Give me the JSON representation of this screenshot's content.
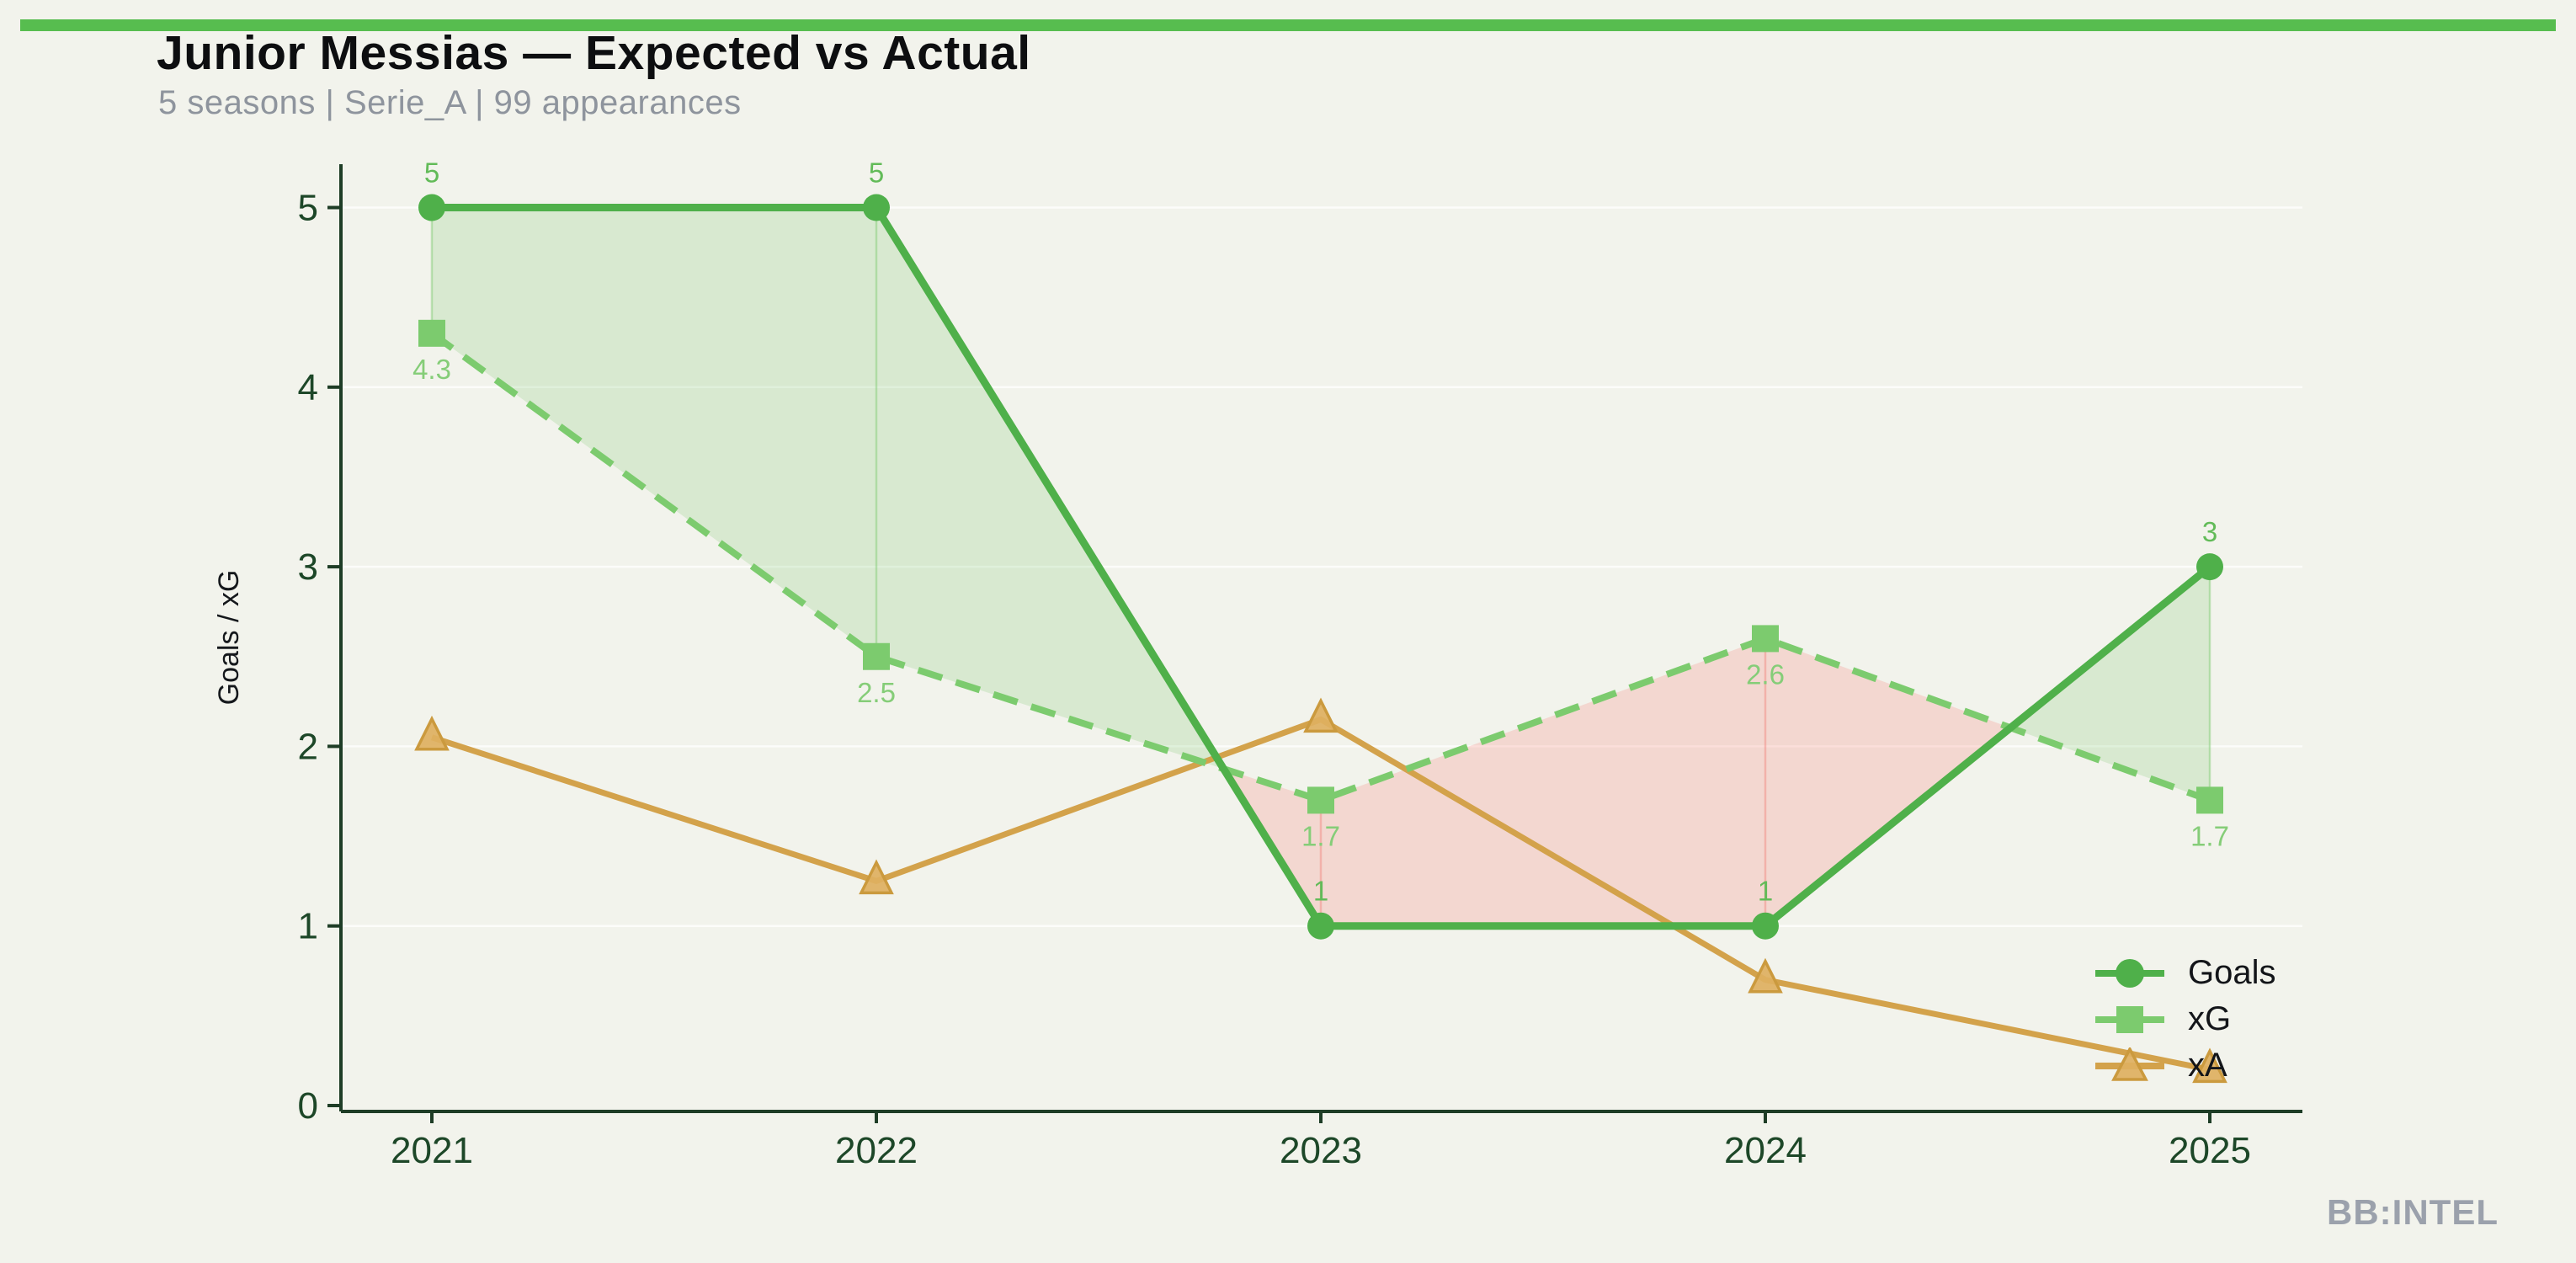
{
  "page": {
    "background_color": "#f2f3ec",
    "accent_bar_color": "#57bd4f"
  },
  "header": {
    "title": "Junior Messias — Expected vs Actual",
    "subtitle": "5 seasons | Serie_A | 99 appearances"
  },
  "watermark": "BB:INTEL",
  "chart_data": {
    "type": "line",
    "x": [
      "2021",
      "2022",
      "2023",
      "2024",
      "2025"
    ],
    "ylabel": "Goals / xG",
    "xlabel": "",
    "ylim": [
      0,
      5.3
    ],
    "yticks": [
      "0",
      "1",
      "2",
      "3",
      "4",
      "5"
    ],
    "grid": "faint horizontal gridlines",
    "legend_position": "lower right",
    "axis_color": "#1e3d26",
    "tick_label_color": "#1d4728",
    "series": [
      {
        "name": "Goals",
        "values": [
          5,
          5,
          1,
          1,
          3
        ],
        "labels": [
          "5",
          "5",
          "1",
          "1",
          "3"
        ],
        "color": "#4fb04a",
        "label_color": "#62bb58",
        "marker": "circle",
        "line_style": "solid"
      },
      {
        "name": "xG",
        "values": [
          4.3,
          2.5,
          1.7,
          2.6,
          1.7
        ],
        "labels": [
          "4.3",
          "2.5",
          "1.7",
          "2.6",
          "1.7"
        ],
        "color": "#7ccb6e",
        "label_color": "#85cd78",
        "marker": "square",
        "line_style": "dashed"
      },
      {
        "name": "xA",
        "values": [
          2.05,
          1.25,
          2.15,
          0.7,
          0.2
        ],
        "labels": [],
        "color": "#d3a24b",
        "label_color": "#d3a24b",
        "marker": "triangle",
        "line_style": "solid"
      }
    ],
    "bands": {
      "description": "shaded area between Goals and xG",
      "above_color": "rgba(125,201,111,0.22)",
      "below_color": "rgba(248,130,122,0.25)",
      "above_stem_color": "rgba(125,201,111,0.45)",
      "below_stem_color": "rgba(240,120,112,0.40)"
    }
  }
}
